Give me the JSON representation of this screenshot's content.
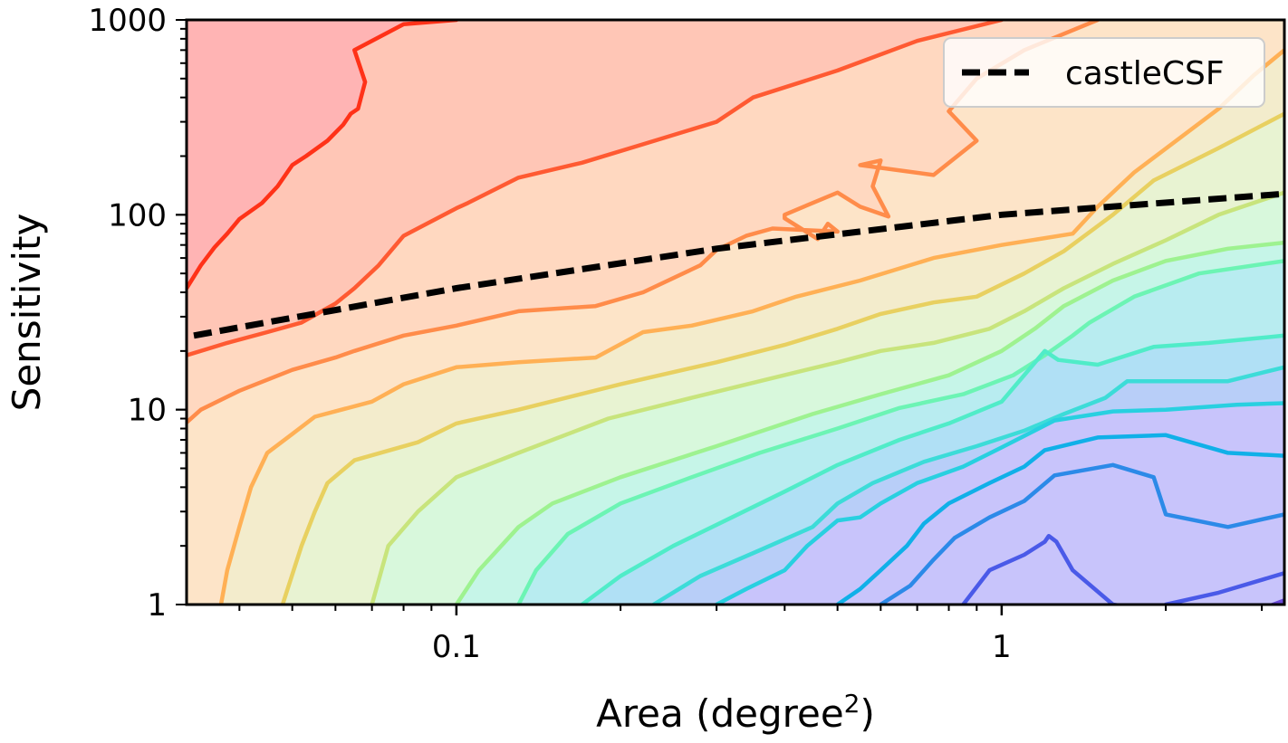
{
  "chart_data": {
    "type": "line",
    "xlabel": "Area (degree",
    "xlabel_sup": "2",
    "xlabel_close": ")",
    "ylabel": "Sensitivity",
    "xscale": "log",
    "yscale": "log",
    "xlim": [
      0.032,
      3.3
    ],
    "ylim": [
      1,
      1000
    ],
    "xticks": [
      {
        "value": 0.1,
        "label": "0.1"
      },
      {
        "value": 1,
        "label": "1"
      }
    ],
    "yticks": [
      {
        "value": 1,
        "label": "1"
      },
      {
        "value": 10,
        "label": "10"
      },
      {
        "value": 100,
        "label": "100"
      },
      {
        "value": 1000,
        "label": "1000"
      }
    ],
    "grid": false,
    "legend": {
      "placement": "top-right",
      "entries": [
        {
          "label": "castleCSF",
          "style": "dashed",
          "color": "#000000"
        }
      ]
    },
    "region_fills": [
      "#ffb4b4",
      "#ffc6b6",
      "#ffd8c0",
      "#fde4c8",
      "#f3eccc",
      "#e8f3d2",
      "#d8f8dc",
      "#c6f5e8",
      "#b8ecf0",
      "#b0e0f5",
      "#b8cef8",
      "#c8c4fb"
    ],
    "contours": [
      {
        "color": "#ff3218",
        "points": [
          [
            0.032,
            42
          ],
          [
            0.034,
            55
          ],
          [
            0.036,
            68
          ],
          [
            0.038,
            80
          ],
          [
            0.04,
            95
          ],
          [
            0.044,
            115
          ],
          [
            0.047,
            140
          ],
          [
            0.05,
            180
          ],
          [
            0.053,
            200
          ],
          [
            0.058,
            240
          ],
          [
            0.062,
            290
          ],
          [
            0.064,
            330
          ],
          [
            0.066,
            350
          ],
          [
            0.068,
            480
          ],
          [
            0.065,
            700
          ],
          [
            0.08,
            950
          ],
          [
            0.1,
            1000
          ]
        ]
      },
      {
        "color": "#ff5a32",
        "points": [
          [
            0.032,
            19
          ],
          [
            0.038,
            22
          ],
          [
            0.045,
            25
          ],
          [
            0.052,
            28
          ],
          [
            0.06,
            35
          ],
          [
            0.065,
            42
          ],
          [
            0.072,
            55
          ],
          [
            0.08,
            78
          ],
          [
            0.1,
            108
          ],
          [
            0.105,
            115
          ],
          [
            0.13,
            155
          ],
          [
            0.17,
            185
          ],
          [
            0.22,
            230
          ],
          [
            0.3,
            300
          ],
          [
            0.35,
            400
          ],
          [
            0.5,
            550
          ],
          [
            0.7,
            780
          ],
          [
            1.0,
            1000
          ]
        ]
      },
      {
        "color": "#ff8c4a",
        "points": [
          [
            0.032,
            8.6
          ],
          [
            0.034,
            10
          ],
          [
            0.04,
            12.5
          ],
          [
            0.05,
            16
          ],
          [
            0.06,
            18.5
          ],
          [
            0.065,
            20
          ],
          [
            0.08,
            24
          ],
          [
            0.1,
            27
          ],
          [
            0.13,
            32
          ],
          [
            0.18,
            34
          ],
          [
            0.22,
            40
          ],
          [
            0.28,
            55
          ],
          [
            0.3,
            66
          ],
          [
            0.34,
            78
          ],
          [
            0.38,
            85
          ],
          [
            0.5,
            82
          ],
          [
            0.48,
            90
          ],
          [
            0.46,
            75
          ],
          [
            0.4,
            96
          ],
          [
            0.4,
            100
          ],
          [
            0.45,
            115
          ],
          [
            0.5,
            130
          ],
          [
            0.55,
            110
          ],
          [
            0.62,
            98
          ],
          [
            0.58,
            140
          ],
          [
            0.6,
            190
          ],
          [
            0.55,
            180
          ],
          [
            0.75,
            160
          ],
          [
            0.9,
            240
          ],
          [
            0.8,
            340
          ],
          [
            0.9,
            500
          ],
          [
            1.1,
            700
          ],
          [
            1.5,
            1000
          ]
        ]
      },
      {
        "color": "#ffb055",
        "points": [
          [
            0.037,
            1
          ],
          [
            0.038,
            1.5
          ],
          [
            0.04,
            2.5
          ],
          [
            0.042,
            4
          ],
          [
            0.045,
            6
          ],
          [
            0.05,
            7.5
          ],
          [
            0.055,
            9.2
          ],
          [
            0.07,
            11
          ],
          [
            0.08,
            13.5
          ],
          [
            0.1,
            16.5
          ],
          [
            0.13,
            17.5
          ],
          [
            0.18,
            18.5
          ],
          [
            0.22,
            25
          ],
          [
            0.27,
            27
          ],
          [
            0.35,
            32
          ],
          [
            0.42,
            38
          ],
          [
            0.55,
            46
          ],
          [
            0.75,
            60
          ],
          [
            1.0,
            70
          ],
          [
            1.35,
            80
          ],
          [
            1.5,
            110
          ],
          [
            1.75,
            165
          ],
          [
            2.5,
            350
          ],
          [
            2.9,
            520
          ],
          [
            3.3,
            700
          ]
        ]
      },
      {
        "color": "#e8d060",
        "points": [
          [
            0.048,
            1
          ],
          [
            0.052,
            2
          ],
          [
            0.055,
            3
          ],
          [
            0.058,
            4.2
          ],
          [
            0.065,
            5.5
          ],
          [
            0.085,
            6.8
          ],
          [
            0.1,
            8.5
          ],
          [
            0.13,
            10
          ],
          [
            0.2,
            13.5
          ],
          [
            0.3,
            17.5
          ],
          [
            0.4,
            21.5
          ],
          [
            0.5,
            26
          ],
          [
            0.6,
            31
          ],
          [
            0.75,
            35.5
          ],
          [
            0.9,
            38
          ],
          [
            1.1,
            50
          ],
          [
            1.3,
            65
          ],
          [
            1.6,
            100
          ],
          [
            1.9,
            150
          ],
          [
            2.5,
            220
          ],
          [
            3.3,
            330
          ]
        ]
      },
      {
        "color": "#c8e47c",
        "points": [
          [
            0.07,
            1
          ],
          [
            0.075,
            2
          ],
          [
            0.085,
            3
          ],
          [
            0.1,
            4.5
          ],
          [
            0.13,
            6
          ],
          [
            0.19,
            9
          ],
          [
            0.27,
            11.5
          ],
          [
            0.36,
            14
          ],
          [
            0.5,
            17.5
          ],
          [
            0.6,
            20
          ],
          [
            0.75,
            22
          ],
          [
            0.95,
            26
          ],
          [
            1.1,
            32
          ],
          [
            1.3,
            42
          ],
          [
            1.6,
            56
          ],
          [
            2.0,
            74
          ],
          [
            2.5,
            100
          ],
          [
            3.3,
            130
          ]
        ]
      },
      {
        "color": "#9ef290",
        "points": [
          [
            0.1,
            1
          ],
          [
            0.11,
            1.5
          ],
          [
            0.13,
            2.5
          ],
          [
            0.15,
            3.3
          ],
          [
            0.2,
            4.5
          ],
          [
            0.3,
            6.5
          ],
          [
            0.45,
            9.5
          ],
          [
            0.6,
            12
          ],
          [
            0.8,
            15
          ],
          [
            1.0,
            20
          ],
          [
            1.15,
            26
          ],
          [
            1.3,
            34
          ],
          [
            1.6,
            46
          ],
          [
            2.0,
            58
          ],
          [
            2.6,
            67
          ],
          [
            3.3,
            72
          ]
        ]
      },
      {
        "color": "#6cf4b4",
        "points": [
          [
            0.13,
            1
          ],
          [
            0.14,
            1.5
          ],
          [
            0.16,
            2.3
          ],
          [
            0.2,
            3.3
          ],
          [
            0.27,
            4.5
          ],
          [
            0.36,
            6
          ],
          [
            0.5,
            8
          ],
          [
            0.65,
            10.2
          ],
          [
            0.85,
            12
          ],
          [
            1.05,
            15
          ],
          [
            1.2,
            19
          ],
          [
            1.35,
            24
          ],
          [
            1.45,
            28
          ],
          [
            1.75,
            38
          ],
          [
            2.3,
            50
          ],
          [
            3.3,
            58
          ]
        ]
      },
      {
        "color": "#50ecc8",
        "points": [
          [
            0.17,
            1
          ],
          [
            0.2,
            1.4
          ],
          [
            0.25,
            2
          ],
          [
            0.32,
            2.8
          ],
          [
            0.4,
            3.8
          ],
          [
            0.5,
            5.2
          ],
          [
            0.65,
            7
          ],
          [
            0.8,
            8.5
          ],
          [
            1.0,
            11
          ],
          [
            1.2,
            20
          ],
          [
            1.27,
            18
          ],
          [
            1.5,
            17
          ],
          [
            1.9,
            21
          ],
          [
            2.4,
            22
          ],
          [
            3.3,
            24
          ]
        ]
      },
      {
        "color": "#3cdcd8",
        "points": [
          [
            0.23,
            1
          ],
          [
            0.28,
            1.4
          ],
          [
            0.36,
            1.9
          ],
          [
            0.45,
            2.5
          ],
          [
            0.5,
            3.3
          ],
          [
            0.58,
            4.2
          ],
          [
            0.72,
            5.4
          ],
          [
            0.9,
            6.5
          ],
          [
            1.1,
            7.8
          ],
          [
            1.3,
            9.5
          ],
          [
            1.55,
            11.5
          ],
          [
            1.7,
            14
          ],
          [
            2.0,
            14
          ],
          [
            2.6,
            14
          ],
          [
            3.3,
            16.5
          ]
        ]
      },
      {
        "color": "#28d0e0",
        "points": [
          [
            0.3,
            1
          ],
          [
            0.34,
            1.2
          ],
          [
            0.4,
            1.5
          ],
          [
            0.44,
            2
          ],
          [
            0.5,
            2.7
          ],
          [
            0.55,
            2.8
          ],
          [
            0.6,
            3.3
          ],
          [
            0.7,
            4.2
          ],
          [
            0.85,
            5.1
          ],
          [
            1.0,
            6.4
          ],
          [
            1.25,
            8.8
          ],
          [
            1.6,
            9.8
          ],
          [
            2.0,
            10
          ],
          [
            2.7,
            10.6
          ],
          [
            3.3,
            10.8
          ]
        ]
      },
      {
        "color": "#10b0e8",
        "points": [
          [
            0.5,
            1
          ],
          [
            0.55,
            1.2
          ],
          [
            0.6,
            1.5
          ],
          [
            0.67,
            2
          ],
          [
            0.72,
            2.6
          ],
          [
            0.8,
            3.3
          ],
          [
            0.95,
            4.2
          ],
          [
            1.1,
            5.1
          ],
          [
            1.2,
            6.2
          ],
          [
            1.5,
            7.2
          ],
          [
            2.0,
            7.4
          ],
          [
            2.6,
            6
          ],
          [
            3.3,
            5.8
          ]
        ]
      },
      {
        "color": "#2c8ae8",
        "points": [
          [
            0.6,
            1
          ],
          [
            0.68,
            1.25
          ],
          [
            0.75,
            1.7
          ],
          [
            0.82,
            2.2
          ],
          [
            0.95,
            2.8
          ],
          [
            1.1,
            3.4
          ],
          [
            1.25,
            4.6
          ],
          [
            1.6,
            5.2
          ],
          [
            1.9,
            4.5
          ],
          [
            2.0,
            2.9
          ],
          [
            2.6,
            2.5
          ],
          [
            3.3,
            2.9
          ]
        ]
      },
      {
        "color": "#4a5ae8",
        "points": [
          [
            0.85,
            1
          ],
          [
            0.95,
            1.5
          ],
          [
            1.1,
            1.8
          ],
          [
            1.2,
            2.1
          ],
          [
            1.22,
            2.25
          ],
          [
            1.26,
            2.1
          ],
          [
            1.35,
            1.5
          ],
          [
            1.6,
            1.0
          ],
          [
            1.8,
            0.95
          ]
        ]
      },
      {
        "color": "#4a5ae8",
        "points": [
          [
            2.0,
            1
          ],
          [
            2.5,
            1.15
          ],
          [
            3.3,
            1.45
          ]
        ]
      },
      {
        "color": "#6a4ad8",
        "points": [
          [
            3.0,
            0.95
          ],
          [
            3.3,
            1.05
          ]
        ]
      }
    ],
    "series": [
      {
        "name": "castleCSF",
        "style": "dashed",
        "color": "#000000",
        "x": [
          0.033,
          0.1,
          0.3,
          1.0,
          3.3
        ],
        "y": [
          24,
          42,
          67,
          100,
          128
        ]
      }
    ]
  }
}
